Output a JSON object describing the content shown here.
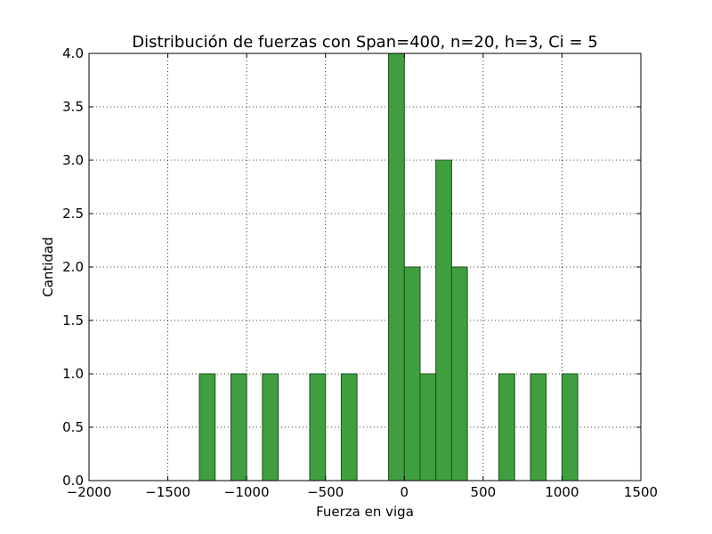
{
  "chart_data": {
    "type": "bar",
    "title": "Distribución de fuerzas con Span=400, n=20, h=3, Ci = 5",
    "xlabel": "Fuerza en viga",
    "ylabel": "Cantidad",
    "xlim": [
      -2000,
      1500
    ],
    "ylim": [
      0,
      4
    ],
    "xticks": [
      -2000,
      -1500,
      -1000,
      -500,
      0,
      500,
      1000,
      1500
    ],
    "xtick_labels": [
      "−2000",
      "−1500",
      "−1000",
      "−500",
      "0",
      "500",
      "1000",
      "1500"
    ],
    "yticks": [
      0,
      0.5,
      1,
      1.5,
      2,
      2.5,
      3,
      3.5,
      4
    ],
    "ytick_labels": [
      "0.0",
      "0.5",
      "1.0",
      "1.5",
      "2.0",
      "2.5",
      "3.0",
      "3.5",
      "4.0"
    ],
    "grid": true,
    "bar_color": "#3f9f3f",
    "bar_edge_color": "#1e4d1e",
    "bins": [
      {
        "x0": -1600,
        "x1": -1500,
        "value": 0
      },
      {
        "x0": -1500,
        "x1": -1400,
        "value": 0
      },
      {
        "x0": -1400,
        "x1": -1300,
        "value": 0
      },
      {
        "x0": -1300,
        "x1": -1200,
        "value": 1
      },
      {
        "x0": -1200,
        "x1": -1100,
        "value": 0
      },
      {
        "x0": -1100,
        "x1": -1000,
        "value": 1
      },
      {
        "x0": -1000,
        "x1": -900,
        "value": 0
      },
      {
        "x0": -900,
        "x1": -800,
        "value": 1
      },
      {
        "x0": -800,
        "x1": -700,
        "value": 0
      },
      {
        "x0": -700,
        "x1": -600,
        "value": 0
      },
      {
        "x0": -600,
        "x1": -500,
        "value": 1
      },
      {
        "x0": -500,
        "x1": -400,
        "value": 0
      },
      {
        "x0": -400,
        "x1": -300,
        "value": 1
      },
      {
        "x0": -300,
        "x1": -200,
        "value": 0
      },
      {
        "x0": -200,
        "x1": -100,
        "value": 0
      },
      {
        "x0": -100,
        "x1": 0,
        "value": 4
      },
      {
        "x0": 0,
        "x1": 100,
        "value": 2
      },
      {
        "x0": 100,
        "x1": 200,
        "value": 1
      },
      {
        "x0": 200,
        "x1": 300,
        "value": 3
      },
      {
        "x0": 300,
        "x1": 400,
        "value": 2
      },
      {
        "x0": 400,
        "x1": 500,
        "value": 0
      },
      {
        "x0": 500,
        "x1": 600,
        "value": 0
      },
      {
        "x0": 600,
        "x1": 700,
        "value": 1
      },
      {
        "x0": 700,
        "x1": 800,
        "value": 0
      },
      {
        "x0": 800,
        "x1": 900,
        "value": 1
      },
      {
        "x0": 900,
        "x1": 1000,
        "value": 0
      },
      {
        "x0": 1000,
        "x1": 1100,
        "value": 1
      }
    ]
  }
}
